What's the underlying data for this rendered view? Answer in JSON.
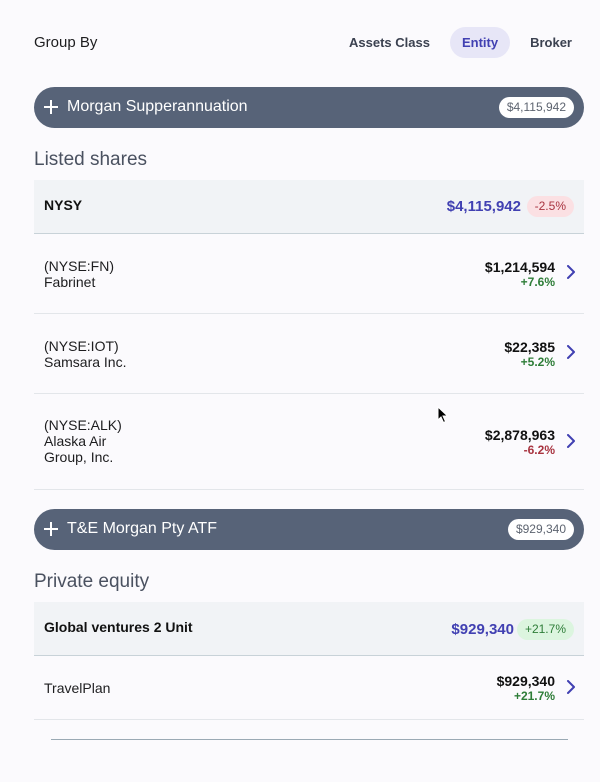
{
  "groupby": {
    "label": "Group By",
    "tabs": [
      {
        "label": "Assets Class",
        "active": false
      },
      {
        "label": "Entity",
        "active": true
      },
      {
        "label": "Broker",
        "active": false
      }
    ]
  },
  "entities": [
    {
      "name": "Morgan Supperannuation",
      "total": "$4,115,942",
      "section_title": "Listed shares",
      "group": {
        "name": "NYSY",
        "total": "$4,115,942",
        "change": "-2.5%"
      },
      "rows": [
        {
          "line1": "(NYSE:FN)",
          "line2": "Fabrinet",
          "line3": "",
          "amount": "$1,214,594",
          "change": "+7.6%"
        },
        {
          "line1": "(NYSE:IOT)",
          "line2": "Samsara Inc.",
          "line3": "",
          "amount": "$22,385",
          "change": "+5.2%"
        },
        {
          "line1": "(NYSE:ALK)",
          "line2": "Alaska Air",
          "line3": "Group, Inc.",
          "amount": "$2,878,963",
          "change": "-6.2%"
        }
      ]
    },
    {
      "name": "T&E Morgan Pty ATF",
      "total": "$929,340",
      "section_title": "Private equity",
      "group": {
        "name": "Global ventures 2 Unit",
        "total": "$929,340",
        "change": "+21.7%"
      },
      "rows": [
        {
          "line1": "TravelPlan",
          "line2": "",
          "line3": "",
          "amount": "$929,340",
          "change": "+21.7%"
        }
      ]
    }
  ],
  "colors": {
    "accent": "#4140b2",
    "entity_bar": "#576378",
    "positive": "#2e7d38",
    "negative": "#a8333f"
  }
}
